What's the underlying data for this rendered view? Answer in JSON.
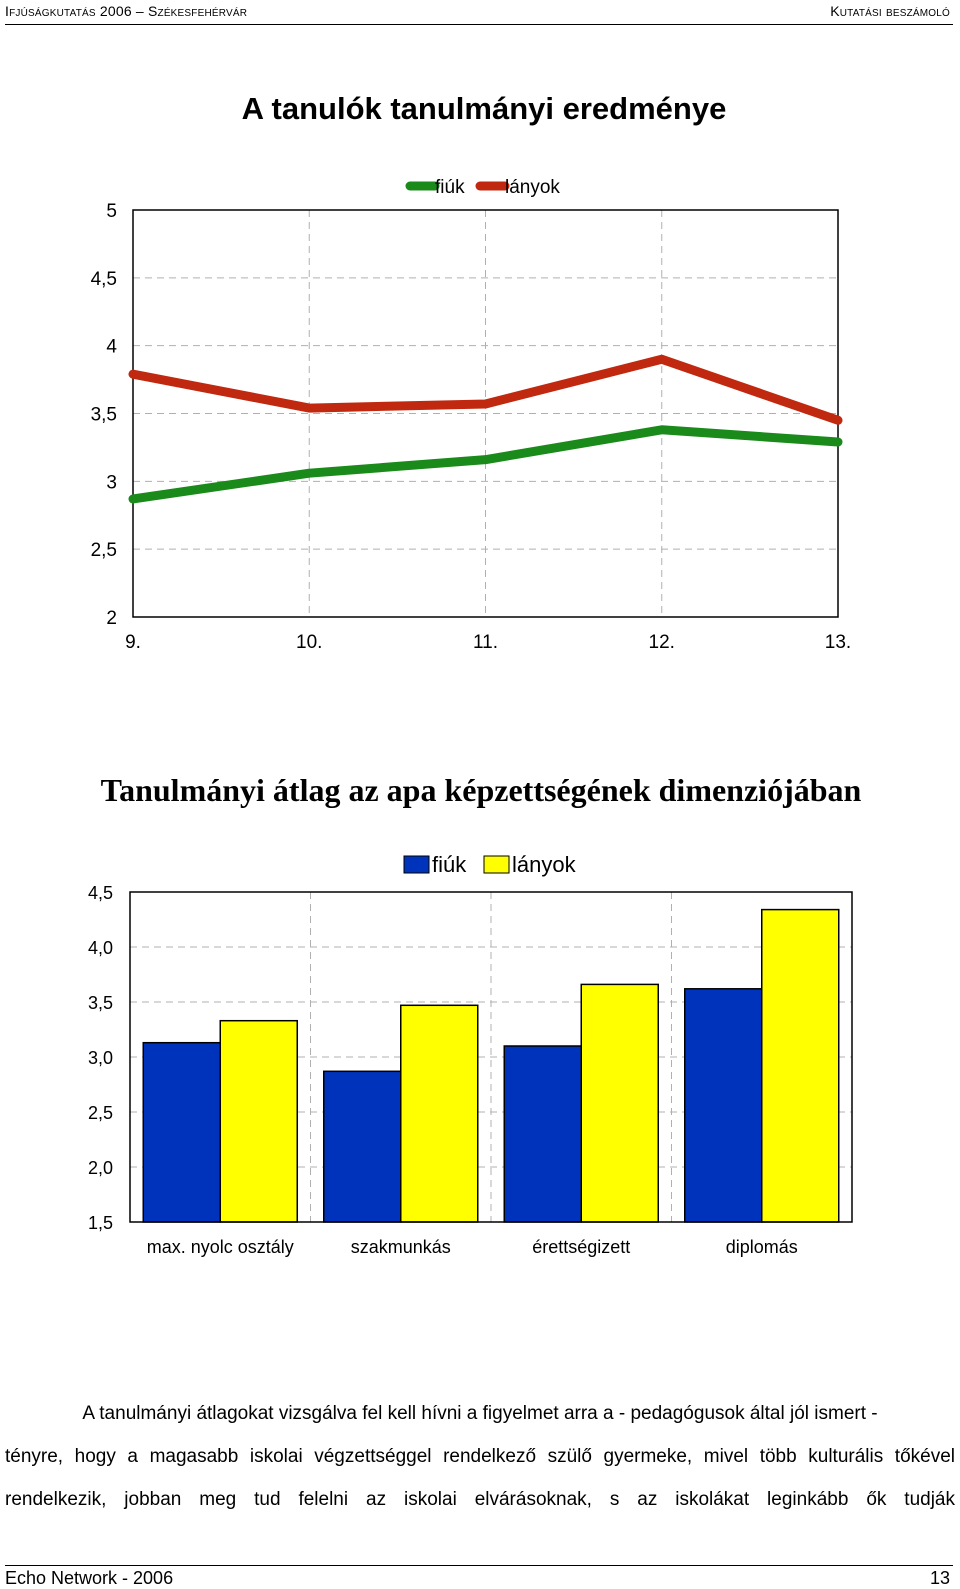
{
  "header": {
    "left": "Ifjúságkutatás 2006 – Székesfehérvár",
    "right": "Kutatási beszámoló"
  },
  "chart_data": [
    {
      "type": "line",
      "title": "A tanulók tanulmányi eredménye",
      "categories": [
        "9.",
        "10.",
        "11.",
        "12.",
        "13."
      ],
      "yticks": [
        "2",
        "2,5",
        "3",
        "3,5",
        "4",
        "4,5",
        "5"
      ],
      "ylim": [
        2,
        5
      ],
      "grid": true,
      "legend": "top",
      "series": [
        {
          "name": "fiúk",
          "color": "#1a8a1a",
          "values": [
            2.87,
            3.06,
            3.16,
            3.38,
            3.29
          ]
        },
        {
          "name": "lányok",
          "color": "#c0280f",
          "values": [
            3.79,
            3.54,
            3.57,
            3.9,
            3.45
          ]
        }
      ]
    },
    {
      "type": "bar",
      "title": "Tanulmányi átlag az apa képzettségének dimenziójában",
      "categories": [
        "max. nyolc osztály",
        "szakmunkás",
        "érettségizett",
        "diplomás"
      ],
      "yticks": [
        "1,5",
        "2,0",
        "2,5",
        "3,0",
        "3,5",
        "4,0",
        "4,5"
      ],
      "ylim": [
        1.5,
        4.5
      ],
      "grid": true,
      "legend": "top",
      "series": [
        {
          "name": "fiúk",
          "color": "#0033bb",
          "values": [
            3.13,
            2.87,
            3.1,
            3.62
          ]
        },
        {
          "name": "lányok",
          "color": "#ffff00",
          "values": [
            3.33,
            3.47,
            3.66,
            4.34
          ]
        }
      ]
    }
  ],
  "paragraph": {
    "lines": [
      "A tanulmányi átlagokat vizsgálva fel kell hívni a figyelmet arra a - pedagógusok által jól ismert -",
      "tényre, hogy a magasabb iskolai végzettséggel rendelkező szülő gyermeke, mivel több kulturális tőkével",
      "rendelkezik, jobban meg tud felelni az iskolai elvárásoknak, s az iskolákat leginkább ők tudják"
    ]
  },
  "footer": {
    "left": "Echo Network - 2006",
    "right": "13"
  }
}
